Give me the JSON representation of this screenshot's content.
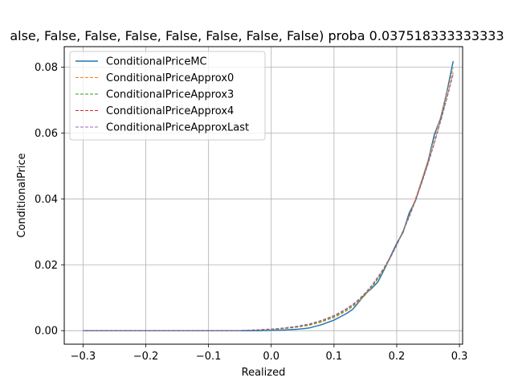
{
  "chart_data": {
    "type": "line",
    "title": "alse, False, False, False, False, False, False, False) proba 0.037518333333333",
    "xlabel": "Realized",
    "ylabel": "ConditionalPrice",
    "xlim": [
      -0.33,
      0.305
    ],
    "ylim": [
      -0.0041,
      0.0862
    ],
    "xticks": [
      -0.3,
      -0.2,
      -0.1,
      0.0,
      0.1,
      0.2,
      0.3
    ],
    "xtick_labels": [
      "−0.3",
      "−0.2",
      "−0.1",
      "0.0",
      "0.1",
      "0.2",
      "0.3"
    ],
    "yticks": [
      0.0,
      0.02,
      0.04,
      0.06,
      0.08
    ],
    "ytick_labels": [
      "0.00",
      "0.02",
      "0.04",
      "0.06",
      "0.08"
    ],
    "grid": true,
    "legend_position": "upper-left",
    "x": [
      -0.3,
      -0.28,
      -0.26,
      -0.24,
      -0.22,
      -0.2,
      -0.18,
      -0.16,
      -0.14,
      -0.12,
      -0.1,
      -0.08,
      -0.06,
      -0.04,
      -0.02,
      0.0,
      0.02,
      0.04,
      0.06,
      0.08,
      0.1,
      0.11,
      0.12,
      0.13,
      0.14,
      0.15,
      0.16,
      0.17,
      0.18,
      0.19,
      0.2,
      0.21,
      0.22,
      0.23,
      0.24,
      0.25,
      0.26,
      0.27,
      0.28,
      0.29
    ],
    "series": [
      {
        "name": "ConditionalPriceMC",
        "color": "#1f77b4",
        "style": "solid",
        "values": [
          0,
          0,
          0,
          0,
          0,
          0,
          0,
          0,
          0,
          0,
          0,
          0,
          0,
          0,
          0,
          0.0001,
          0.0002,
          0.0004,
          0.0008,
          0.0018,
          0.0032,
          0.0042,
          0.0052,
          0.0065,
          0.0088,
          0.0112,
          0.0128,
          0.0148,
          0.0185,
          0.0225,
          0.0265,
          0.0298,
          0.0358,
          0.0395,
          0.0455,
          0.0515,
          0.0595,
          0.0645,
          0.0725,
          0.0818
        ]
      },
      {
        "name": "ConditionalPriceApprox0",
        "color": "#ff7f0e",
        "style": "dashed",
        "values": [
          0,
          0,
          0,
          0,
          0,
          0,
          0,
          0,
          0,
          0,
          0,
          0,
          0,
          0.0001,
          0.0002,
          0.0003,
          0.0006,
          0.001,
          0.0016,
          0.0026,
          0.004,
          0.0049,
          0.006,
          0.0073,
          0.0089,
          0.0108,
          0.0131,
          0.0157,
          0.0187,
          0.0221,
          0.026,
          0.0303,
          0.035,
          0.0402,
          0.0458,
          0.0518,
          0.0582,
          0.065,
          0.0722,
          0.0798
        ]
      },
      {
        "name": "ConditionalPriceApprox3",
        "color": "#2ca02c",
        "style": "dashed",
        "values": [
          0,
          0,
          0,
          0,
          0,
          0,
          0,
          0,
          0,
          0,
          0,
          0,
          0,
          0.0001,
          0.0002,
          0.0004,
          0.0007,
          0.0011,
          0.0018,
          0.0028,
          0.0043,
          0.0052,
          0.0063,
          0.0076,
          0.0092,
          0.0111,
          0.0133,
          0.0159,
          0.0189,
          0.0222,
          0.0259,
          0.03,
          0.0345,
          0.0395,
          0.0449,
          0.0507,
          0.057,
          0.0637,
          0.0708,
          0.0783
        ]
      },
      {
        "name": "ConditionalPriceApprox4",
        "color": "#d62728",
        "style": "dashed",
        "values": [
          0,
          0,
          0,
          0,
          0,
          0,
          0,
          0,
          0,
          0,
          0,
          0,
          0,
          0.0001,
          0.0003,
          0.0005,
          0.0008,
          0.0013,
          0.002,
          0.0031,
          0.0046,
          0.0056,
          0.0067,
          0.008,
          0.0096,
          0.0115,
          0.0137,
          0.0163,
          0.0192,
          0.0225,
          0.0262,
          0.0303,
          0.0348,
          0.0397,
          0.045,
          0.0508,
          0.057,
          0.0636,
          0.0706,
          0.078
        ]
      },
      {
        "name": "ConditionalPriceApproxLast",
        "color": "#9467bd",
        "style": "dashed",
        "values": [
          0,
          0,
          0,
          0,
          0,
          0,
          0,
          0,
          0,
          0,
          0,
          0,
          0,
          0.0001,
          0.0003,
          0.0005,
          0.0008,
          0.0013,
          0.002,
          0.0031,
          0.0045,
          0.0055,
          0.0066,
          0.0079,
          0.0095,
          0.0114,
          0.0136,
          0.0162,
          0.0191,
          0.0224,
          0.0261,
          0.0302,
          0.0347,
          0.0396,
          0.0449,
          0.0507,
          0.0569,
          0.0635,
          0.0705,
          0.0779
        ]
      }
    ]
  }
}
